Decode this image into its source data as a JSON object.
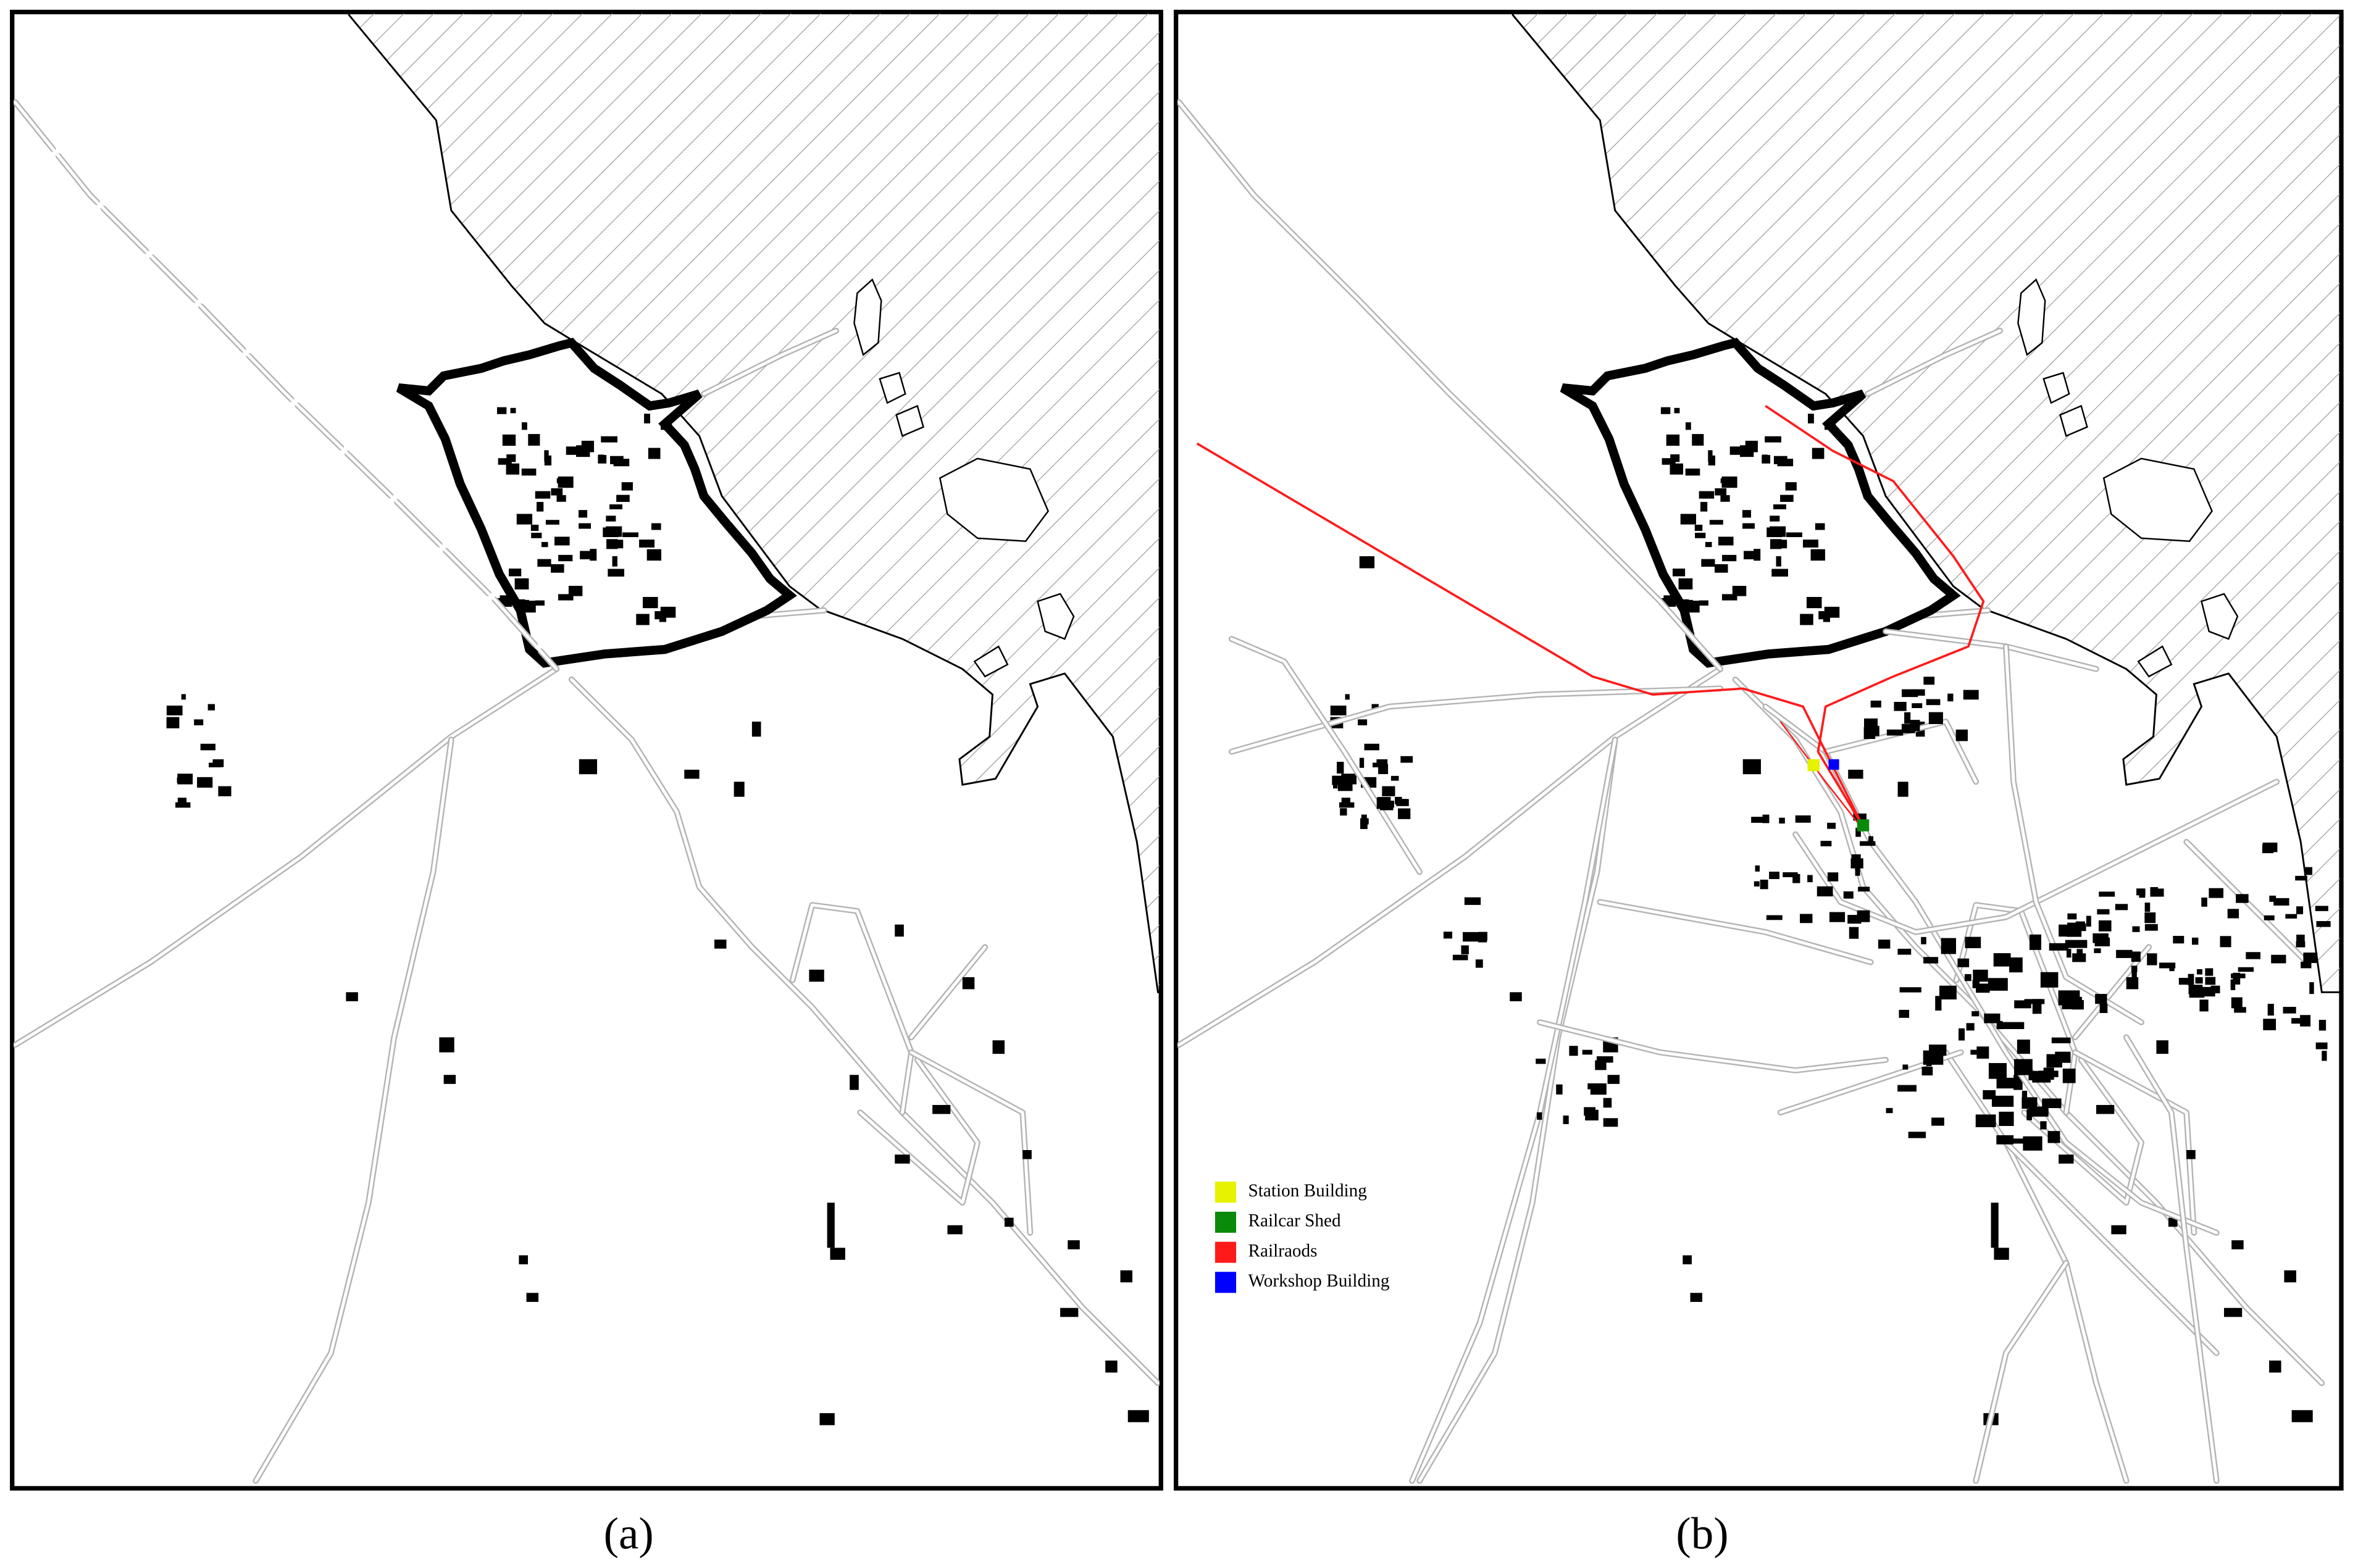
{
  "panels": [
    {
      "label": "(a)"
    },
    {
      "label": "(b)",
      "legend": [
        {
          "name": "Station Building",
          "color": "#e6f200"
        },
        {
          "name": "Railcar Shed",
          "color": "#0a8a0a"
        },
        {
          "name": "Railraods",
          "color": "#ff1a1a"
        },
        {
          "name": "Workshop Building",
          "color": "#0000ff"
        }
      ]
    }
  ]
}
